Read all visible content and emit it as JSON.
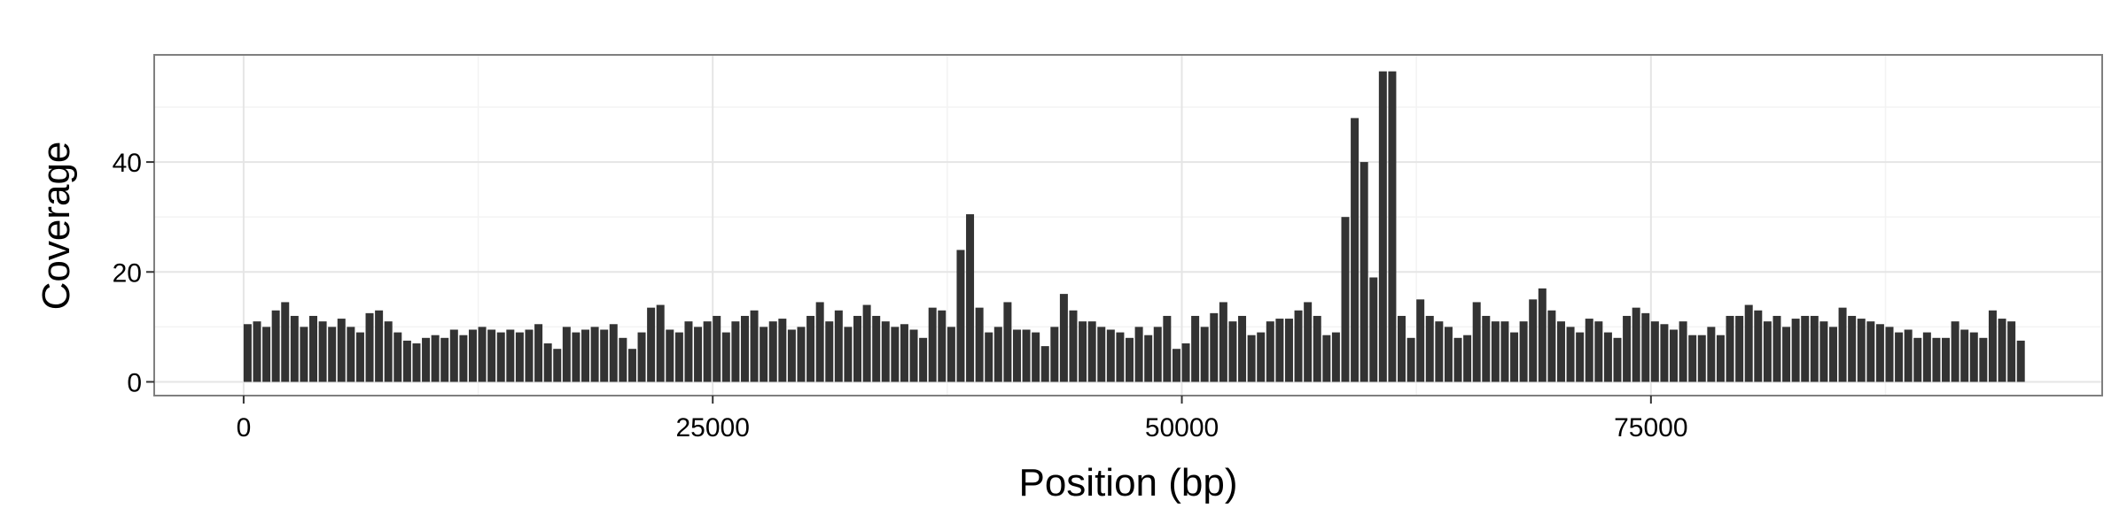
{
  "chart_data": {
    "type": "bar",
    "x_label": "Position (bp)",
    "y_label": "Coverage",
    "color": "#333333",
    "grid": true,
    "xlim": [
      -4766,
      99048
    ],
    "xticks": [
      0,
      25000,
      50000,
      75000
    ],
    "xminorticks": [
      12500,
      37500,
      62500,
      87500
    ],
    "ylim": [
      -2.5,
      59.5
    ],
    "yticks": [
      0,
      20,
      40
    ],
    "yminorticks": [
      10,
      30,
      50
    ],
    "x": [
      0,
      500,
      1000,
      1500,
      2000,
      2500,
      3000,
      3500,
      4000,
      4500,
      5000,
      5500,
      6000,
      6500,
      7000,
      7500,
      8000,
      8500,
      9000,
      9500,
      10000,
      10500,
      11000,
      11500,
      12000,
      12500,
      13000,
      13500,
      14000,
      14500,
      15000,
      15500,
      16000,
      16500,
      17000,
      17500,
      18000,
      18500,
      19000,
      19500,
      20000,
      20500,
      21000,
      21500,
      22000,
      22500,
      23000,
      23500,
      24000,
      24500,
      25000,
      25500,
      26000,
      26500,
      27000,
      27500,
      28000,
      28500,
      29000,
      29500,
      30000,
      30500,
      31000,
      31500,
      32000,
      32500,
      33000,
      33500,
      34000,
      34500,
      35000,
      35500,
      36000,
      36500,
      37000,
      37500,
      38000,
      38500,
      39000,
      39500,
      40000,
      40500,
      41000,
      41500,
      42000,
      42500,
      43000,
      43500,
      44000,
      44500,
      45000,
      45500,
      46000,
      46500,
      47000,
      47500,
      48000,
      48500,
      49000,
      49500,
      50000,
      50500,
      51000,
      51500,
      52000,
      52500,
      53000,
      53500,
      54000,
      54500,
      55000,
      55500,
      56000,
      56500,
      57000,
      57500,
      58000,
      58500,
      59000,
      59500,
      60000,
      60500,
      61000,
      61500,
      62000,
      62500,
      63000,
      63500,
      64000,
      64500,
      65000,
      65500,
      66000,
      66500,
      67000,
      67500,
      68000,
      68500,
      69000,
      69500,
      70000,
      70500,
      71000,
      71500,
      72000,
      72500,
      73000,
      73500,
      74000,
      74500,
      75000,
      75500,
      76000,
      76500,
      77000,
      77500,
      78000,
      78500,
      79000,
      79500,
      80000,
      80500,
      81000,
      81500,
      82000,
      82500,
      83000,
      83500,
      84000,
      84500,
      85000,
      85500,
      86000,
      86500,
      87000,
      87500,
      88000,
      88500,
      89000,
      89500,
      90000,
      90500,
      91000,
      91500,
      92000,
      92500,
      93000,
      93500,
      94000,
      94500
    ],
    "values": [
      10.5,
      11,
      10,
      13,
      14.5,
      12,
      10,
      12,
      11,
      10,
      11.5,
      10,
      9,
      12.5,
      13,
      11,
      9,
      7.5,
      7,
      8,
      8.5,
      8,
      9.5,
      8.5,
      9.5,
      10,
      9.5,
      9,
      9.5,
      9,
      9.5,
      10.5,
      7,
      6,
      10,
      9,
      9.5,
      10,
      9.5,
      10.5,
      8,
      6,
      9,
      13.5,
      14,
      9.5,
      9,
      11,
      10,
      11,
      12,
      9,
      11,
      12,
      13,
      10,
      11,
      11.5,
      9.5,
      10,
      12,
      14.5,
      11,
      13,
      10,
      12,
      14,
      12,
      11,
      10,
      10.5,
      9.5,
      8,
      13.5,
      13,
      10,
      24,
      30.5,
      13.5,
      9,
      10,
      14.5,
      9.5,
      9.5,
      9,
      6.5,
      10,
      16,
      13,
      11,
      11,
      10,
      9.5,
      9,
      8,
      10,
      8.5,
      10,
      12,
      6,
      7,
      12,
      10,
      12.5,
      14.5,
      11,
      12,
      8.5,
      9,
      11,
      11.5,
      11.5,
      13,
      14.5,
      12,
      8.5,
      9,
      30,
      48,
      40,
      19,
      56.5,
      56.5,
      12,
      8,
      15,
      12,
      11,
      10,
      8,
      8.5,
      14.5,
      12,
      11,
      11,
      9,
      11,
      15,
      17,
      13,
      11,
      10,
      9,
      11.5,
      11,
      9,
      8,
      12,
      13.5,
      12.5,
      11,
      10.5,
      9.5,
      11,
      8.5,
      8.5,
      10,
      8.5,
      12,
      12,
      14,
      13,
      11,
      12,
      10,
      11.5,
      12,
      12,
      11,
      10,
      13.5,
      12,
      11.5,
      11,
      10.5,
      10,
      9,
      9.5,
      8,
      9,
      8,
      8,
      11,
      9.5,
      9,
      8,
      13,
      11.5,
      11,
      7.5
    ]
  }
}
